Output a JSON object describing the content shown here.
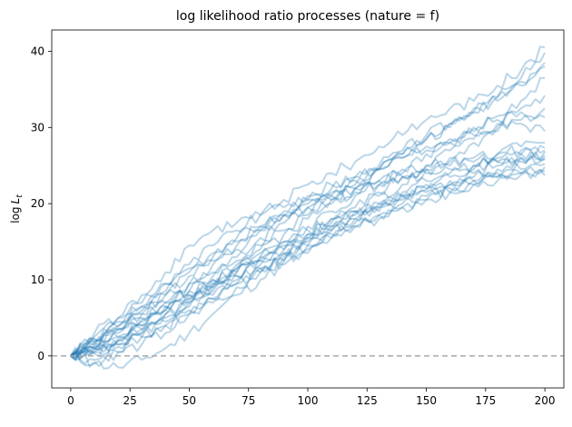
{
  "chart_data": {
    "type": "line",
    "title": "log likelihood ratio processes (nature = f)",
    "xlabel": "",
    "ylabel": "log L_t",
    "ylabel_parts": {
      "base": "log",
      "var": "L",
      "sub": "t"
    },
    "xlim": [
      -8,
      208
    ],
    "ylim": [
      -4.2,
      42.8
    ],
    "xticks": [
      0,
      25,
      50,
      75,
      100,
      125,
      150,
      175,
      200
    ],
    "yticks": [
      0,
      10,
      20,
      30,
      40
    ],
    "grid": false,
    "reference_line": {
      "y": 0,
      "style": "dashed",
      "color": "#aaaaaa"
    },
    "series_color": "#1f77b4",
    "series_opacity": 0.3,
    "x": [
      0,
      10,
      20,
      30,
      40,
      50,
      60,
      70,
      80,
      90,
      100,
      110,
      120,
      130,
      140,
      150,
      160,
      170,
      180,
      190,
      200
    ],
    "series": [
      {
        "values": [
          0,
          2.2,
          3.8,
          6.5,
          9.5,
          12.0,
          14.5,
          16.5,
          18.5,
          20.5,
          22.5,
          24.0,
          25.5,
          27.5,
          29.0,
          31.0,
          32.5,
          33.5,
          35.5,
          37.5,
          40.5
        ]
      },
      {
        "values": [
          0,
          1.5,
          3.0,
          4.8,
          6.5,
          8.5,
          10.5,
          12.5,
          14.5,
          16.5,
          18.5,
          20.5,
          22.5,
          24.5,
          26.5,
          28.5,
          30.5,
          32.0,
          34.0,
          36.5,
          39.8
        ]
      },
      {
        "values": [
          0,
          1.0,
          2.5,
          4.0,
          6.0,
          8.0,
          10.0,
          12.0,
          14.0,
          16.0,
          18.0,
          20.0,
          22.0,
          24.5,
          26.5,
          28.5,
          30.0,
          32.0,
          34.0,
          36.0,
          38.5
        ]
      },
      {
        "values": [
          0,
          2.0,
          4.0,
          6.0,
          8.0,
          10.5,
          12.5,
          14.5,
          16.5,
          18.5,
          20.5,
          22.0,
          23.5,
          25.0,
          27.0,
          29.0,
          30.5,
          32.5,
          33.5,
          35.5,
          38.0
        ]
      },
      {
        "values": [
          0,
          1.2,
          2.2,
          3.5,
          5.5,
          7.0,
          9.0,
          11.0,
          13.0,
          15.0,
          17.0,
          19.0,
          21.0,
          22.5,
          24.5,
          26.5,
          28.0,
          29.5,
          31.5,
          33.5,
          36.5
        ]
      },
      {
        "values": [
          0,
          0.5,
          1.5,
          3.0,
          5.0,
          7.0,
          8.5,
          10.5,
          12.5,
          14.0,
          16.0,
          18.0,
          19.5,
          21.5,
          23.5,
          25.0,
          27.0,
          28.5,
          30.5,
          32.5,
          34.2
        ]
      },
      {
        "values": [
          0,
          -0.5,
          0.5,
          1.5,
          3.0,
          5.5,
          7.5,
          9.5,
          11.5,
          13.5,
          15.5,
          17.0,
          19.0,
          21.0,
          22.5,
          24.5,
          26.0,
          28.0,
          29.5,
          31.0,
          32.5
        ]
      },
      {
        "values": [
          0,
          1.8,
          3.5,
          5.0,
          6.5,
          8.0,
          9.5,
          11.5,
          13.0,
          14.5,
          16.0,
          17.5,
          19.0,
          20.0,
          21.5,
          23.0,
          24.0,
          25.0,
          26.5,
          27.5,
          28.0
        ]
      },
      {
        "values": [
          0,
          2.5,
          5.0,
          8.0,
          11.0,
          14.5,
          16.5,
          17.5,
          18.5,
          19.5,
          20.5,
          21.0,
          22.0,
          23.0,
          23.5,
          24.0,
          24.5,
          25.0,
          25.5,
          26.5,
          27.3
        ]
      },
      {
        "values": [
          0,
          0.5,
          2.0,
          4.0,
          6.0,
          7.5,
          9.0,
          11.0,
          12.5,
          14.0,
          15.5,
          17.0,
          18.5,
          19.5,
          21.0,
          22.0,
          23.0,
          24.0,
          25.0,
          26.0,
          26.8
        ]
      },
      {
        "values": [
          0,
          1.0,
          2.5,
          3.5,
          5.5,
          7.5,
          9.5,
          10.5,
          12.0,
          13.5,
          15.0,
          16.5,
          18.0,
          19.0,
          20.5,
          21.5,
          22.5,
          23.5,
          24.5,
          25.5,
          26.0
        ]
      },
      {
        "values": [
          0,
          -1.0,
          -1.5,
          -0.5,
          1.0,
          3.0,
          5.5,
          8.0,
          10.0,
          12.0,
          13.5,
          15.5,
          17.0,
          18.5,
          20.0,
          21.0,
          22.0,
          23.0,
          24.0,
          24.5,
          25.2
        ]
      },
      {
        "values": [
          0,
          0.8,
          1.5,
          3.0,
          4.5,
          6.5,
          8.0,
          10.0,
          11.5,
          13.0,
          14.5,
          16.0,
          17.5,
          18.5,
          19.5,
          20.5,
          21.5,
          22.5,
          23.0,
          23.8,
          24.2
        ]
      },
      {
        "values": [
          0,
          1.5,
          3.5,
          5.5,
          7.0,
          8.5,
          10.0,
          11.5,
          13.5,
          15.0,
          16.5,
          18.0,
          19.0,
          20.0,
          21.0,
          21.8,
          22.5,
          23.0,
          23.5,
          24.0,
          23.7
        ]
      },
      {
        "values": [
          0,
          3.0,
          5.0,
          7.0,
          9.5,
          11.5,
          13.5,
          15.5,
          17.0,
          18.5,
          19.5,
          20.5,
          21.5,
          22.5,
          23.5,
          24.5,
          25.0,
          25.5,
          26.0,
          26.5,
          26.3
        ]
      },
      {
        "values": [
          0,
          -0.8,
          0.5,
          2.5,
          4.0,
          5.5,
          7.0,
          9.0,
          11.0,
          12.5,
          14.5,
          16.5,
          18.0,
          19.5,
          21.0,
          22.5,
          23.5,
          24.5,
          25.5,
          26.0,
          25.8
        ]
      },
      {
        "values": [
          0,
          1.8,
          3.5,
          5.5,
          8.5,
          11.0,
          13.0,
          15.0,
          17.0,
          19.0,
          21.0,
          22.5,
          23.5,
          24.5,
          26.0,
          27.5,
          28.5,
          30.0,
          31.0,
          32.0,
          31.3
        ]
      },
      {
        "values": [
          0,
          2.2,
          4.5,
          6.5,
          8.0,
          9.5,
          11.0,
          13.0,
          15.5,
          17.5,
          19.5,
          21.5,
          23.0,
          24.5,
          26.0,
          27.0,
          28.0,
          29.0,
          30.0,
          30.5,
          29.5
        ]
      },
      {
        "values": [
          0,
          0.3,
          1.2,
          2.5,
          4.0,
          6.0,
          7.5,
          9.5,
          11.0,
          12.5,
          14.0,
          15.5,
          17.0,
          18.0,
          19.5,
          20.5,
          21.5,
          22.5,
          23.5,
          24.0,
          24.8
        ]
      },
      {
        "values": [
          0,
          1.0,
          2.0,
          4.5,
          7.0,
          9.5,
          12.0,
          14.0,
          16.5,
          18.5,
          20.0,
          21.0,
          22.0,
          23.0,
          24.0,
          25.0,
          25.5,
          26.0,
          26.5,
          27.0,
          27.0
        ]
      }
    ]
  }
}
